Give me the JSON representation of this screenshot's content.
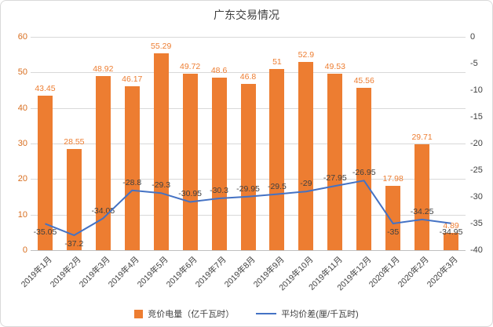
{
  "chart_data": {
    "type": "bar+line combo",
    "title": "广东交易情况",
    "categories": [
      "2019年1月",
      "2019年2月",
      "2019年3月",
      "2019年4月",
      "2019年5月",
      "2019年6月",
      "2019年7月",
      "2019年8月",
      "2019年9月",
      "2019年10月",
      "2019年11月",
      "2019年12月",
      "2020年1月",
      "2020年2月",
      "2020年3月"
    ],
    "series": [
      {
        "name": "竞价电量（亿千瓦时）",
        "type": "bar",
        "axis": "left",
        "color": "#ed7d31",
        "values": [
          43.45,
          28.55,
          48.92,
          46.17,
          55.29,
          49.72,
          48.6,
          46.8,
          51,
          52.9,
          49.53,
          45.56,
          17.98,
          29.71,
          4.89
        ]
      },
      {
        "name": "平均价差(厘/千瓦时)",
        "type": "line",
        "axis": "right",
        "color": "#4472c4",
        "values": [
          -35.05,
          -37.2,
          -34.05,
          -28.8,
          -29.3,
          -30.95,
          -30.3,
          -29.95,
          -29.5,
          -29,
          -27.95,
          -26.95,
          -35,
          -34.25,
          -34.95
        ]
      }
    ],
    "left_axis": {
      "min": 0,
      "max": 60,
      "ticks": [
        0,
        10,
        20,
        30,
        40,
        50,
        60
      ]
    },
    "right_axis": {
      "min": -40,
      "max": 0,
      "ticks": [
        0,
        -5,
        -10,
        -15,
        -20,
        -25,
        -30,
        -35,
        -40
      ]
    },
    "grid": true,
    "legend_position": "bottom"
  }
}
